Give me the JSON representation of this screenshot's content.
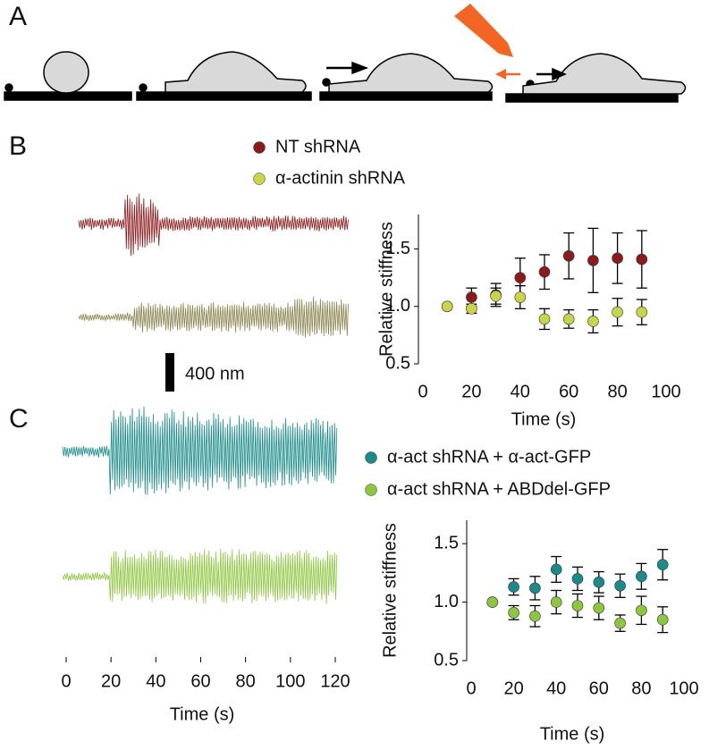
{
  "panel_labels": [
    "A",
    "B",
    "C"
  ],
  "chart_data": [
    {
      "type": "errorscatter",
      "xlabel": "Time (s)",
      "ylabel": "Relative stiffness",
      "xlim": [
        0,
        100
      ],
      "xticks": [
        0,
        20,
        40,
        60,
        80,
        100
      ],
      "ylim": [
        0.5,
        1.8
      ],
      "yticks": [
        {
          "value": 0.5,
          "label": "0.5"
        },
        {
          "value": 1.0,
          "label": "1.0"
        },
        {
          "value": 1.5,
          "label": "1.5"
        }
      ],
      "x": [
        10,
        20,
        30,
        40,
        50,
        60,
        70,
        80,
        90
      ],
      "series": [
        {
          "name": "NT  shRNA",
          "color": "#8b1a1a",
          "values": [
            1.0,
            1.08,
            1.1,
            1.25,
            1.3,
            1.44,
            1.4,
            1.42,
            1.41
          ],
          "errors": [
            0,
            0.08,
            0.1,
            0.17,
            0.15,
            0.2,
            0.28,
            0.22,
            0.25
          ]
        },
        {
          "name": "α-actinin shRNA",
          "color": "#c8d44a",
          "values": [
            1.0,
            0.98,
            1.09,
            1.08,
            0.89,
            0.89,
            0.87,
            0.95,
            0.95
          ],
          "errors": [
            0,
            0.04,
            0.07,
            0.1,
            0.09,
            0.08,
            0.1,
            0.12,
            0.11
          ]
        }
      ]
    },
    {
      "type": "errorscatter",
      "xlabel": "Time (s)",
      "ylabel": "Relative stiffness",
      "xlim": [
        0,
        100
      ],
      "xticks": [
        0,
        20,
        40,
        60,
        80,
        100
      ],
      "ylim": [
        0.5,
        1.7
      ],
      "yticks": [
        {
          "value": 0.5,
          "label": "0.5"
        },
        {
          "value": 1.0,
          "label": "1.0"
        },
        {
          "value": 1.5,
          "label": "1.5"
        }
      ],
      "x": [
        10,
        20,
        30,
        40,
        50,
        60,
        70,
        80,
        90
      ],
      "series": [
        {
          "name": "α-act shRNA + α-act-GFP",
          "color": "#1a8a8a",
          "values": [
            1.0,
            1.13,
            1.12,
            1.28,
            1.2,
            1.17,
            1.14,
            1.22,
            1.32
          ],
          "errors": [
            0,
            0.07,
            0.1,
            0.11,
            0.1,
            0.09,
            0.1,
            0.11,
            0.13
          ]
        },
        {
          "name": "α-act shRNA + ABDdel-GFP",
          "color": "#8dc63f",
          "values": [
            1.0,
            0.91,
            0.88,
            1.0,
            0.97,
            0.95,
            0.82,
            0.93,
            0.85
          ],
          "errors": [
            0,
            0.06,
            0.09,
            0.1,
            0.1,
            0.1,
            0.07,
            0.12,
            0.11
          ]
        }
      ]
    },
    {
      "type": "trace",
      "xlabel": "Time (s)",
      "xlim": [
        0,
        120
      ],
      "xticks": [
        0,
        20,
        40,
        60,
        80,
        100,
        120
      ],
      "scale_label": "400 nm"
    }
  ]
}
